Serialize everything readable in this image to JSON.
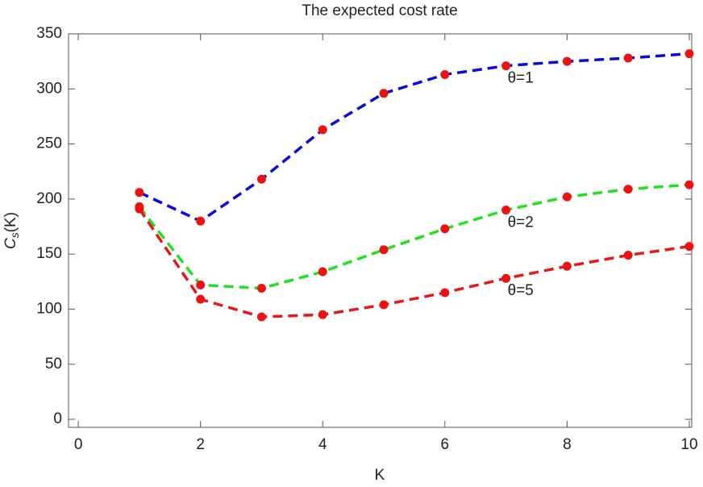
{
  "chart_data": {
    "type": "line",
    "title": "The expected cost rate",
    "x_label": "K",
    "y_label": "Cs(K)",
    "x": [
      1,
      2,
      3,
      4,
      5,
      6,
      7,
      8,
      9,
      10
    ],
    "series": [
      {
        "name": "θ=1",
        "color": "#0a0adc",
        "values": [
          206,
          180,
          218,
          263,
          296,
          313,
          321,
          325,
          328,
          332
        ]
      },
      {
        "name": "θ=2",
        "color": "#22e022",
        "values": [
          193,
          122,
          119,
          134,
          154,
          173,
          190,
          202,
          209,
          213
        ]
      },
      {
        "name": "θ=5",
        "color": "#e41a1a",
        "values": [
          191,
          109,
          93,
          95,
          104,
          115,
          128,
          139,
          149,
          157
        ]
      }
    ],
    "marker_color": "#ee1111",
    "xlim": [
      -0.16,
      10.04
    ],
    "ylim": [
      -7.3,
      350
    ],
    "xticks": [
      0,
      2,
      4,
      6,
      8,
      10
    ],
    "yticks": [
      0,
      50,
      100,
      150,
      200,
      250,
      300,
      350
    ]
  }
}
